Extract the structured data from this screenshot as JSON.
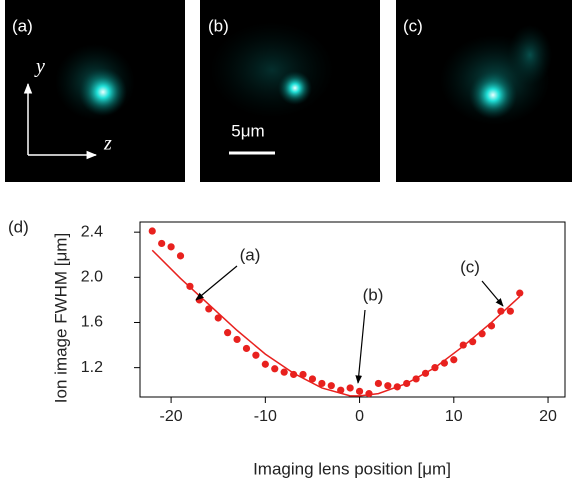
{
  "panels": [
    {
      "label": "(a)"
    },
    {
      "label": "(b)"
    },
    {
      "label": "(c)"
    }
  ],
  "scale_bar": "5μm",
  "axis_labels": {
    "y": "y",
    "z": "z"
  },
  "chart_data": {
    "type": "scatter",
    "panel_label": "(d)",
    "xlabel": "Imaging lens position [μm]",
    "ylabel": "Ion image FWHM [μm]",
    "xlim": [
      -23.3,
      21.8
    ],
    "ylim": [
      0.94,
      2.49
    ],
    "xticks": [
      -20,
      -10,
      0,
      10,
      20
    ],
    "yticks": [
      1.2,
      1.6,
      {
        "value": 2,
        "label": "2.0"
      },
      2.4
    ],
    "series": [
      {
        "type": "scatter",
        "color": "#e8211e",
        "x": [
          -22,
          -21,
          -20,
          -19,
          -18,
          -17,
          -16,
          -15,
          -14,
          -13,
          -12,
          -11,
          -10,
          -9,
          -8,
          -7,
          -6,
          -5,
          -4,
          -3,
          -2,
          -1,
          0,
          1,
          2,
          3,
          4,
          5,
          6,
          7,
          8,
          9,
          10,
          11,
          12,
          13,
          14,
          15,
          16,
          17
        ],
        "values": [
          2.41,
          2.3,
          2.27,
          2.19,
          1.92,
          1.8,
          1.72,
          1.64,
          1.51,
          1.45,
          1.37,
          1.31,
          1.23,
          1.19,
          1.16,
          1.14,
          1.14,
          1.1,
          1.06,
          1.04,
          1.0,
          1.02,
          0.99,
          0.97,
          1.06,
          1.04,
          1.03,
          1.06,
          1.1,
          1.15,
          1.2,
          1.24,
          1.27,
          1.4,
          1.43,
          1.5,
          1.57,
          1.7,
          1.7,
          1.86
        ]
      },
      {
        "type": "line",
        "color": "#e8211e",
        "x": [
          -22,
          -19,
          -16,
          -13,
          -10,
          -7,
          -4,
          -1,
          0,
          2,
          5,
          8,
          11,
          14,
          17
        ],
        "values": [
          2.24,
          1.99,
          1.76,
          1.53,
          1.32,
          1.15,
          1.02,
          0.95,
          0.95,
          0.97,
          1.06,
          1.2,
          1.39,
          1.6,
          1.83
        ]
      }
    ],
    "annotations": [
      "(a)",
      "(b)",
      "(c)"
    ]
  }
}
